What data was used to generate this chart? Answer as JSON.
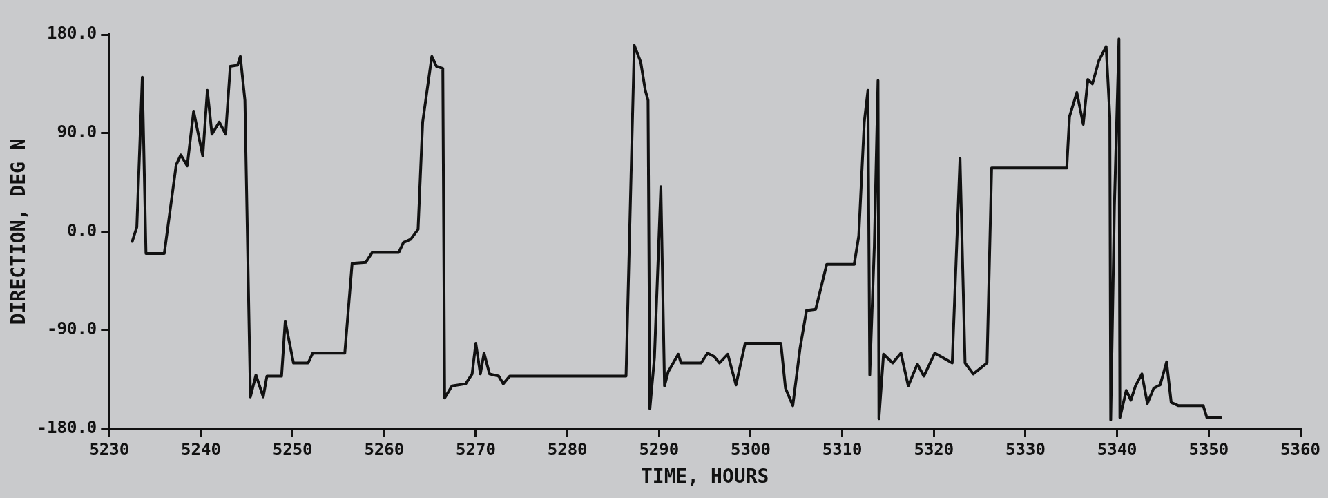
{
  "chart_data": {
    "type": "line",
    "xlabel": "TIME, HOURS",
    "ylabel": "DIRECTION, DEG N",
    "xlim": [
      5230,
      5360
    ],
    "xticks": [
      5230,
      5240,
      5250,
      5260,
      5270,
      5280,
      5290,
      5300,
      5310,
      5320,
      5330,
      5340,
      5350,
      5360
    ],
    "ylim": [
      -180,
      180
    ],
    "yticks": [
      {
        "value": -180,
        "label": "-180.0"
      },
      {
        "value": -90,
        "label": "-90.0"
      },
      {
        "value": 0,
        "label": "0.0"
      },
      {
        "value": 90,
        "label": "90.0"
      },
      {
        "value": 180,
        "label": "180.0"
      }
    ],
    "grid": false,
    "legend": false,
    "marker": "none",
    "line_style": "solid",
    "series": [
      {
        "color": "#111111",
        "x": [
          5232.5,
          5233.0,
          5233.6,
          5234.0,
          5236.0,
          5237.3,
          5237.8,
          5238.5,
          5239.2,
          5240.2,
          5240.7,
          5241.2,
          5242.0,
          5242.7,
          5243.2,
          5244.0,
          5244.3,
          5244.8,
          5245.4,
          5246.0,
          5246.8,
          5247.2,
          5248.8,
          5249.2,
          5250.1,
          5251.7,
          5252.2,
          5255.7,
          5256.5,
          5258.0,
          5258.7,
          5261.6,
          5262.1,
          5262.9,
          5263.7,
          5264.2,
          5265.2,
          5265.7,
          5266.4,
          5266.6,
          5267.4,
          5268.9,
          5269.6,
          5270.0,
          5270.5,
          5270.9,
          5271.5,
          5272.5,
          5273.0,
          5273.7,
          5286.4,
          5287.3,
          5288.0,
          5288.5,
          5288.8,
          5289.0,
          5289.5,
          5290.2,
          5290.6,
          5291.0,
          5292.1,
          5292.4,
          5294.6,
          5295.3,
          5296.0,
          5296.6,
          5297.5,
          5298.4,
          5299.4,
          5303.3,
          5303.8,
          5304.6,
          5305.4,
          5306.1,
          5307.1,
          5308.3,
          5311.3,
          5311.8,
          5312.4,
          5312.8,
          5313.0,
          5313.5,
          5313.9,
          5314.0,
          5314.5,
          5315.5,
          5316.4,
          5317.2,
          5318.2,
          5318.9,
          5320.1,
          5322.0,
          5322.85,
          5323.4,
          5324.3,
          5325.8,
          5326.3,
          5334.5,
          5334.8,
          5335.6,
          5336.3,
          5336.8,
          5337.3,
          5338.0,
          5338.8,
          5339.2,
          5339.3,
          5339.7,
          5340.2,
          5340.3,
          5341.0,
          5341.5,
          5342.0,
          5342.7,
          5343.3,
          5344.0,
          5344.7,
          5345.4,
          5345.9,
          5346.7,
          5349.4,
          5349.8,
          5351.3
        ],
        "values": [
          -9,
          4,
          141,
          -20,
          -20,
          61,
          70,
          60,
          110,
          69,
          129,
          89,
          100,
          89,
          151,
          152,
          160,
          120,
          -151,
          -131,
          -151,
          -132,
          -132,
          -82,
          -120,
          -120,
          -111,
          -111,
          -29,
          -28,
          -19,
          -19,
          -10,
          -7,
          2,
          100,
          160,
          151,
          149,
          -152,
          -141,
          -139,
          -130,
          -102,
          -130,
          -111,
          -130,
          -132,
          -139,
          -132,
          -132,
          170,
          155,
          129,
          120,
          -162,
          -115,
          41,
          -141,
          -128,
          -112,
          -120,
          -120,
          -111,
          -114,
          -120,
          -112,
          -140,
          -102,
          -102,
          -143,
          -159,
          -106,
          -72,
          -71,
          -30,
          -30,
          -4,
          100,
          129,
          -131,
          -13,
          138,
          -171,
          -112,
          -120,
          -111,
          -141,
          -121,
          -132,
          -111,
          -120,
          67,
          -120,
          -130,
          -120,
          58,
          58,
          105,
          127,
          98,
          139,
          135,
          156,
          169,
          105,
          -172,
          23,
          176,
          -170,
          -145,
          -154,
          -141,
          -130,
          -157,
          -143,
          -140,
          -119,
          -156,
          -159,
          -159,
          -170,
          -170
        ]
      }
    ]
  }
}
